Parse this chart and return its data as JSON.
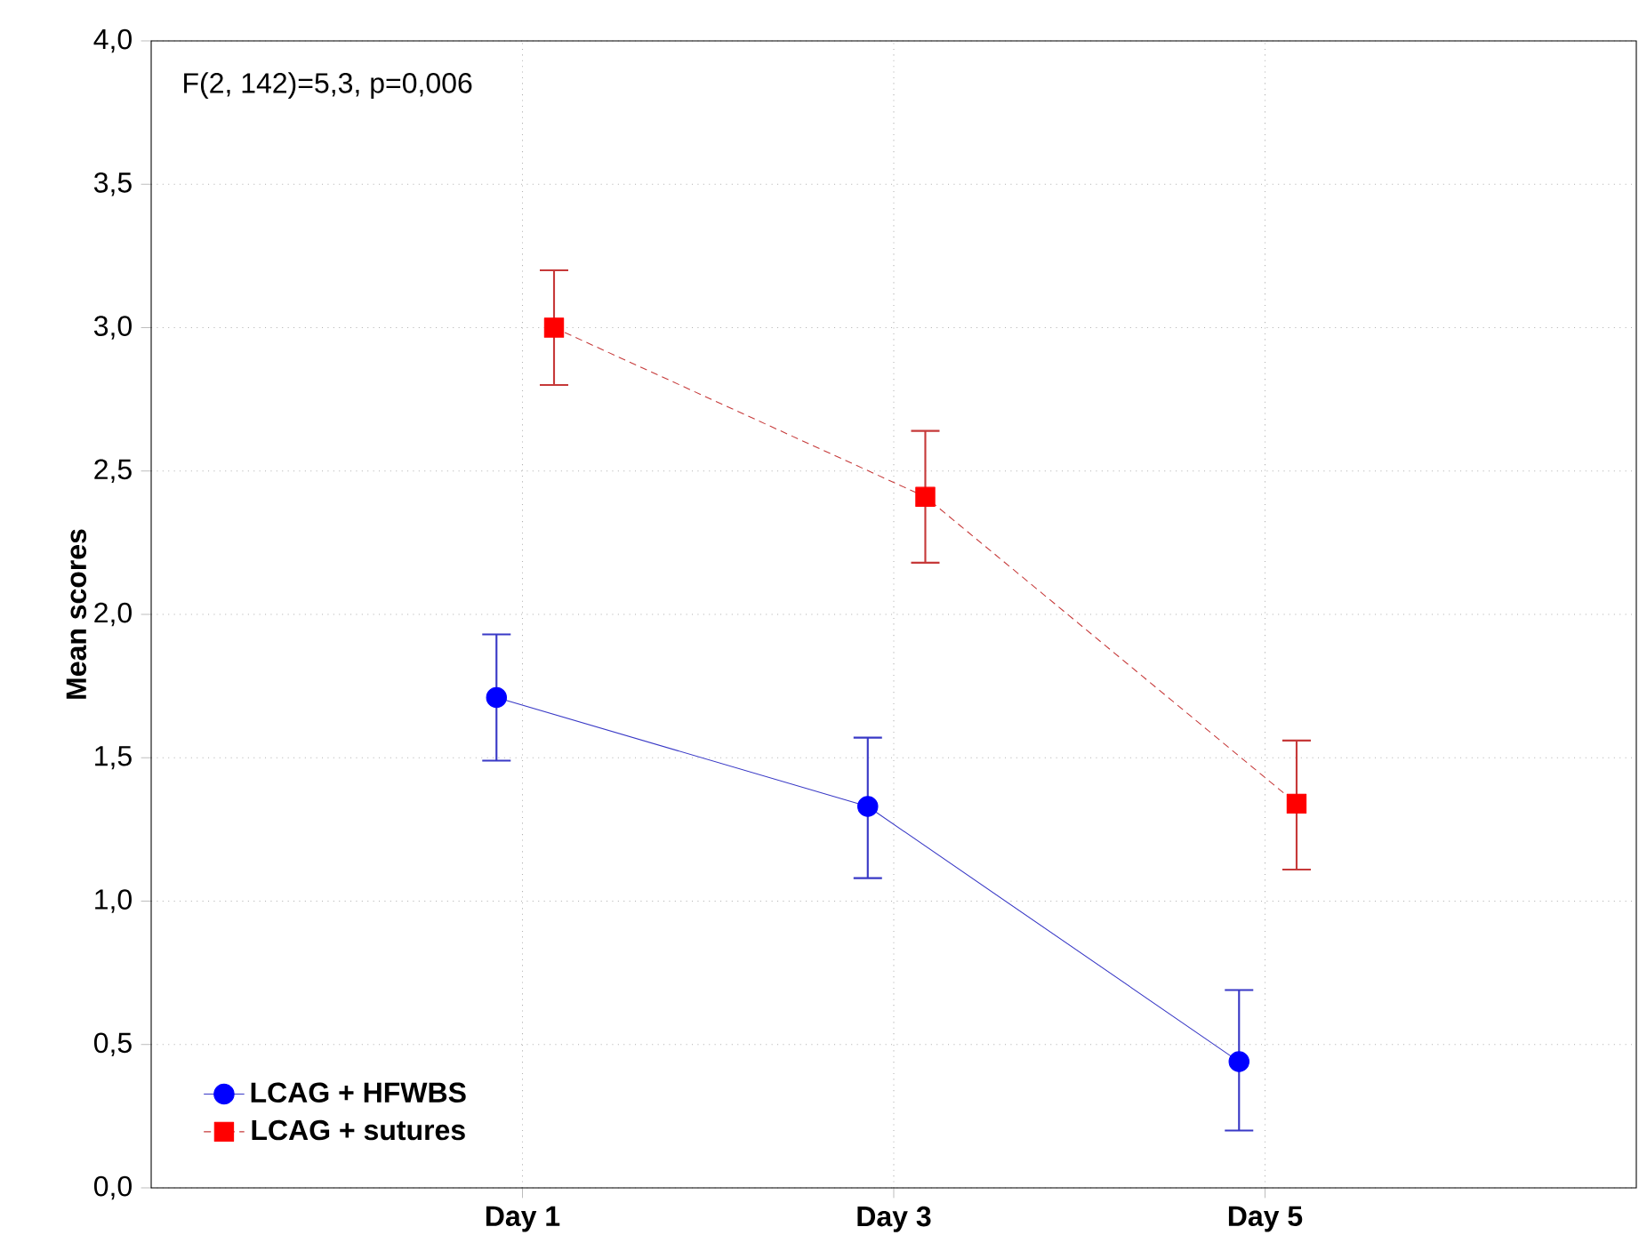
{
  "chart_data": {
    "type": "line",
    "ylabel": "Mean scores",
    "categories": [
      "Day 1",
      "Day 3",
      "Day 5"
    ],
    "series": [
      {
        "name": "LCAG + HFWBS",
        "color": "#0000ff",
        "marker": "circle",
        "line_style": "solid",
        "values": [
          1.71,
          1.33,
          0.44
        ],
        "errors": [
          [
            1.49,
            1.93
          ],
          [
            1.08,
            1.57
          ],
          [
            0.2,
            0.69
          ]
        ]
      },
      {
        "name": "LCAG + sutures",
        "color": "#ff0000",
        "marker": "square",
        "line_style": "dotted",
        "values": [
          3.0,
          2.41,
          1.34
        ],
        "errors": [
          [
            2.8,
            3.2
          ],
          [
            2.18,
            2.64
          ],
          [
            1.11,
            1.56
          ]
        ]
      }
    ],
    "ylim": [
      0,
      4
    ],
    "yticks": [
      {
        "value": 0,
        "label": "0,0"
      },
      {
        "value": 0.5,
        "label": "0,5"
      },
      {
        "value": 1,
        "label": "1,0"
      },
      {
        "value": 1.5,
        "label": "1,5"
      },
      {
        "value": 2,
        "label": "2,0"
      },
      {
        "value": 2.5,
        "label": "2,5"
      },
      {
        "value": 3,
        "label": "3,0"
      },
      {
        "value": 3.5,
        "label": "3,5"
      },
      {
        "value": 4,
        "label": "4,0"
      }
    ],
    "grid": true,
    "legend": "bottom left",
    "annotations": [
      "F(2, 142)=5,3, p=0,006"
    ]
  }
}
